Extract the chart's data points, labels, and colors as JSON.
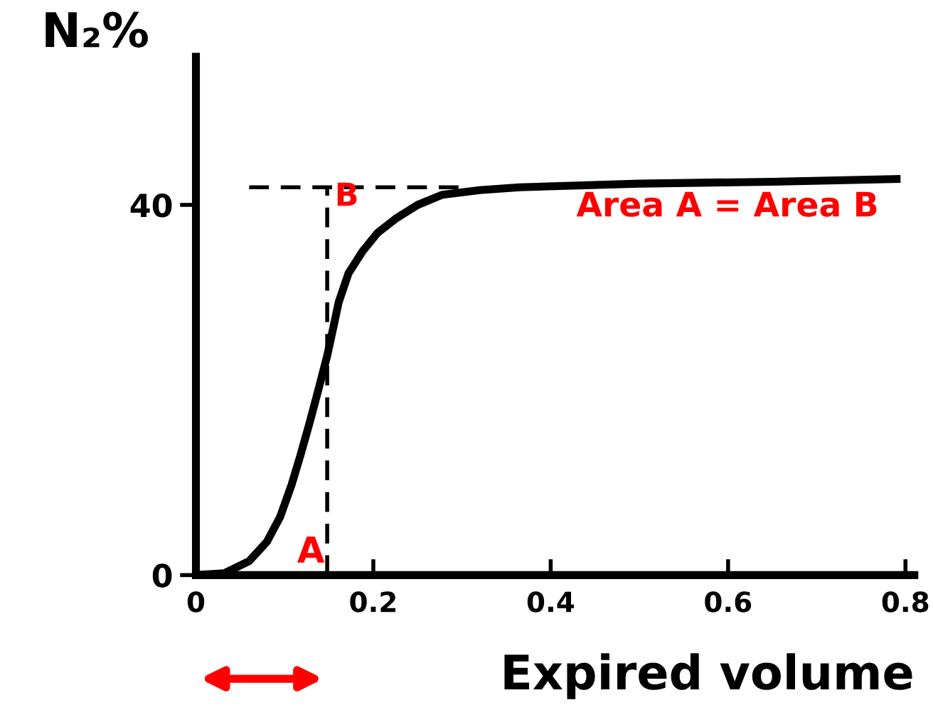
{
  "chart_data": {
    "type": "line",
    "xlabel": "Expired volume",
    "ylabel": "N₂%",
    "series": [
      {
        "color": "#000000",
        "x": [
          0.0,
          0.032,
          0.06,
          0.08,
          0.095,
          0.108,
          0.118,
          0.128,
          0.138,
          0.148,
          0.155,
          0.161,
          0.172,
          0.188,
          0.205,
          0.225,
          0.25,
          0.278,
          0.32,
          0.365,
          0.5,
          0.65,
          0.79
        ],
        "values": [
          0,
          0.2,
          1.5,
          3.6,
          6.3,
          9.8,
          13,
          16.4,
          20,
          23.7,
          26.8,
          29.5,
          32.6,
          35,
          37,
          38.5,
          40,
          41.1,
          41.6,
          41.9,
          42.3,
          42.5,
          42.8
        ]
      },
      {
        "color": "#000000",
        "type": "line",
        "line_style": "dashed",
        "x": [
          0.06,
          0.3
        ],
        "values": [
          41.9,
          41.9
        ]
      },
      {
        "color": "#000000",
        "type": "line",
        "line_style": "dashed",
        "x": [
          0.148,
          0.148
        ],
        "values": [
          0,
          41.9
        ]
      }
    ],
    "annotations": [
      "A",
      "B",
      "Area A = Area B"
    ],
    "xlim": [
      0,
      0.81
    ],
    "ylim": [
      0,
      56
    ],
    "xticks": [
      0,
      0.2,
      0.4,
      0.6,
      0.8
    ],
    "yticks": [
      0,
      40
    ],
    "grid": false,
    "legend": false,
    "marker": "none",
    "line_style": "solid"
  }
}
